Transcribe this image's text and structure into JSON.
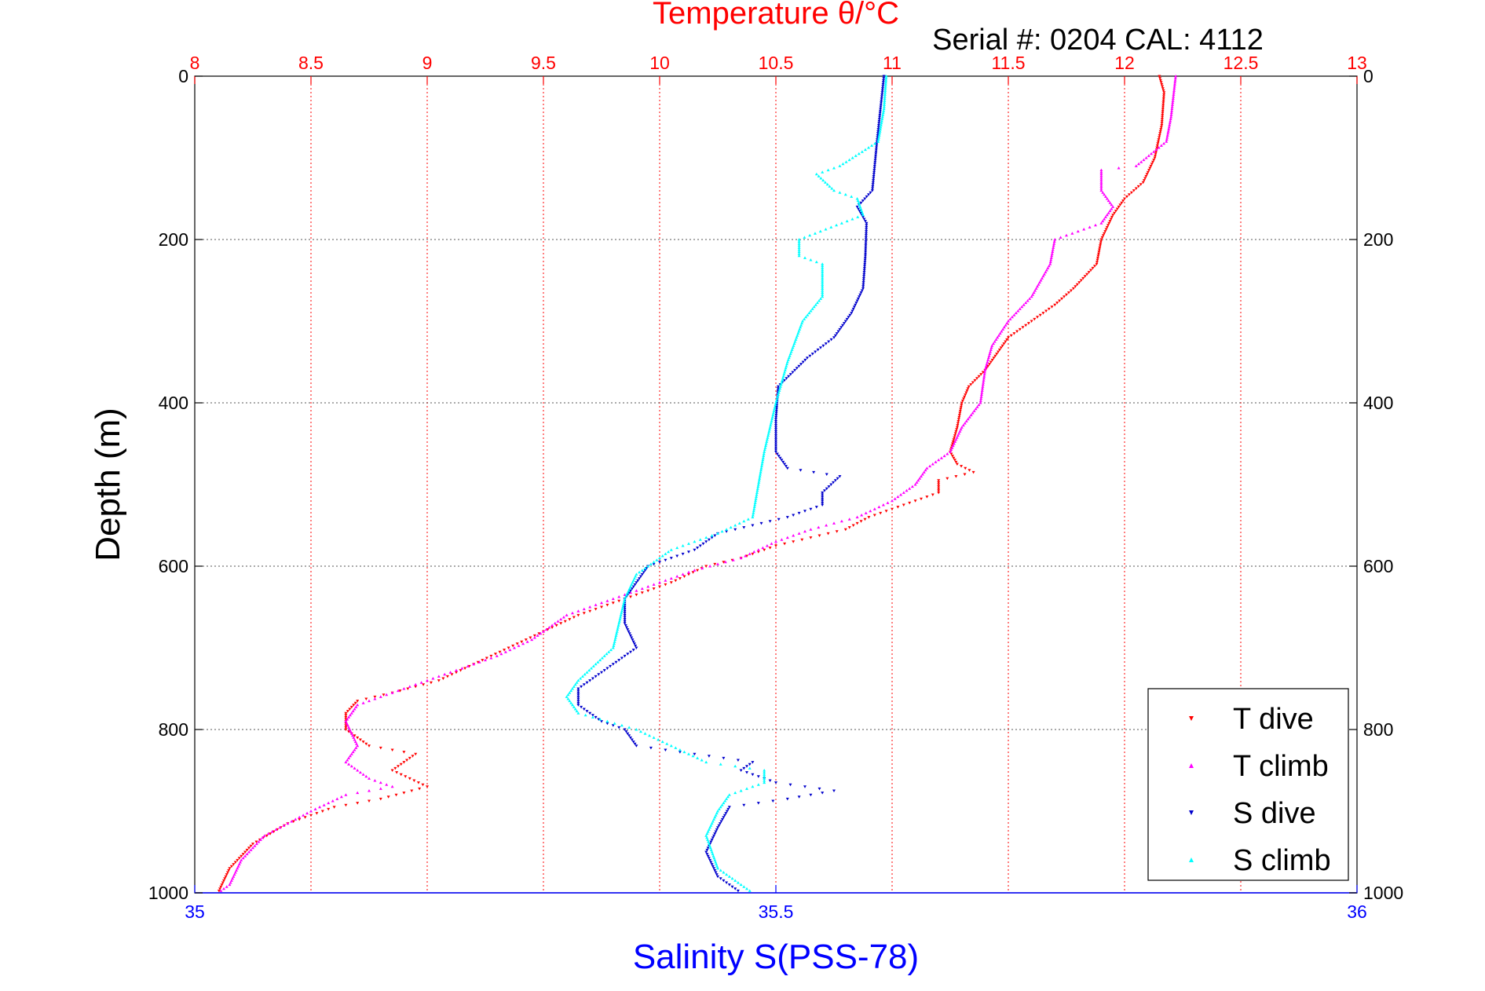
{
  "chart_data": {
    "type": "scatter",
    "title_top": "Temperature θ/°C",
    "subtitle": "Serial #: 0204  CAL: 4112",
    "ylabel": "Depth (m)",
    "xlabel_bottom": "Salinity S(PSS-78)",
    "grid": true,
    "legend_position": "bottom-right",
    "colors": {
      "temperature_axis": "#ff0000",
      "salinity_axis": "#0000ff",
      "t_dive": "#ff0000",
      "t_climb": "#ff00ff",
      "s_dive": "#0000cc",
      "s_climb": "#00ffff"
    },
    "depth_axis": {
      "range": [
        0,
        1000
      ],
      "reversed": true,
      "ticks": [
        0,
        200,
        400,
        600,
        800,
        1000
      ],
      "tick_labels": [
        "0",
        "200",
        "400",
        "600",
        "800",
        "1000"
      ]
    },
    "temperature_axis": {
      "range": [
        8,
        13
      ],
      "ticks": [
        8,
        8.5,
        9,
        9.5,
        10,
        10.5,
        11,
        11.5,
        12,
        12.5,
        13
      ],
      "tick_labels": [
        "8",
        "8.5",
        "9",
        "9.5",
        "10",
        "10.5",
        "11",
        "11.5",
        "12",
        "12.5",
        "13"
      ]
    },
    "salinity_axis": {
      "range": [
        35,
        36
      ],
      "ticks": [
        35,
        35.5,
        36
      ],
      "tick_labels": [
        "35",
        "35.5",
        "36"
      ]
    },
    "legend": [
      "T dive",
      "T climb",
      "S dive",
      "S climb"
    ],
    "series": [
      {
        "name": "T dive",
        "axis": "temperature",
        "points": [
          [
            12.15,
            0
          ],
          [
            12.17,
            20
          ],
          [
            12.16,
            60
          ],
          [
            12.13,
            100
          ],
          [
            12.08,
            130
          ],
          [
            12.0,
            150
          ],
          [
            11.95,
            170
          ],
          [
            11.9,
            200
          ],
          [
            11.88,
            230
          ],
          [
            11.78,
            260
          ],
          [
            11.7,
            280
          ],
          [
            11.6,
            300
          ],
          [
            11.5,
            320
          ],
          [
            11.45,
            340
          ],
          [
            11.4,
            360
          ],
          [
            11.33,
            380
          ],
          [
            11.3,
            400
          ],
          [
            11.28,
            430
          ],
          [
            11.25,
            460
          ],
          [
            11.28,
            475
          ],
          [
            11.35,
            485
          ],
          [
            11.2,
            495
          ],
          [
            11.2,
            510
          ],
          [
            11.1,
            520
          ],
          [
            11.0,
            530
          ],
          [
            10.9,
            540
          ],
          [
            10.8,
            555
          ],
          [
            10.65,
            565
          ],
          [
            10.5,
            575
          ],
          [
            10.35,
            590
          ],
          [
            10.2,
            600
          ],
          [
            10.05,
            620
          ],
          [
            9.85,
            640
          ],
          [
            9.65,
            660
          ],
          [
            9.5,
            680
          ],
          [
            9.35,
            700
          ],
          [
            9.2,
            720
          ],
          [
            9.05,
            740
          ],
          [
            8.85,
            755
          ],
          [
            8.7,
            765
          ],
          [
            8.65,
            780
          ],
          [
            8.65,
            800
          ],
          [
            8.75,
            820
          ],
          [
            8.95,
            830
          ],
          [
            8.85,
            850
          ],
          [
            9.0,
            870
          ],
          [
            8.8,
            885
          ],
          [
            8.6,
            895
          ],
          [
            8.4,
            915
          ],
          [
            8.25,
            940
          ],
          [
            8.15,
            970
          ],
          [
            8.1,
            1000
          ]
        ]
      },
      {
        "name": "T climb",
        "axis": "temperature",
        "points": [
          [
            12.22,
            0
          ],
          [
            12.2,
            50
          ],
          [
            12.18,
            80
          ],
          [
            12.05,
            110
          ],
          [
            11.9,
            115
          ],
          [
            11.9,
            140
          ],
          [
            11.95,
            160
          ],
          [
            11.9,
            180
          ],
          [
            11.7,
            200
          ],
          [
            11.68,
            230
          ],
          [
            11.6,
            270
          ],
          [
            11.5,
            300
          ],
          [
            11.43,
            330
          ],
          [
            11.4,
            360
          ],
          [
            11.38,
            400
          ],
          [
            11.3,
            430
          ],
          [
            11.25,
            460
          ],
          [
            11.15,
            480
          ],
          [
            11.1,
            500
          ],
          [
            11.0,
            520
          ],
          [
            10.85,
            540
          ],
          [
            10.65,
            555
          ],
          [
            10.5,
            570
          ],
          [
            10.35,
            590
          ],
          [
            10.15,
            605
          ],
          [
            10.0,
            620
          ],
          [
            9.8,
            640
          ],
          [
            9.6,
            660
          ],
          [
            9.45,
            690
          ],
          [
            9.3,
            710
          ],
          [
            9.1,
            730
          ],
          [
            8.9,
            750
          ],
          [
            8.7,
            770
          ],
          [
            8.65,
            790
          ],
          [
            8.7,
            820
          ],
          [
            8.65,
            840
          ],
          [
            8.75,
            860
          ],
          [
            8.85,
            870
          ],
          [
            8.65,
            880
          ],
          [
            8.5,
            900
          ],
          [
            8.3,
            930
          ],
          [
            8.2,
            960
          ],
          [
            8.15,
            990
          ],
          [
            8.1,
            1000
          ]
        ]
      },
      {
        "name": "S dive",
        "axis": "salinity",
        "points": [
          [
            35.593,
            0
          ],
          [
            35.59,
            40
          ],
          [
            35.587,
            80
          ],
          [
            35.585,
            110
          ],
          [
            35.583,
            140
          ],
          [
            35.57,
            160
          ],
          [
            35.578,
            180
          ],
          [
            35.577,
            220
          ],
          [
            35.575,
            260
          ],
          [
            35.565,
            290
          ],
          [
            35.55,
            320
          ],
          [
            35.527,
            345
          ],
          [
            35.502,
            380
          ],
          [
            35.5,
            420
          ],
          [
            35.5,
            460
          ],
          [
            35.51,
            480
          ],
          [
            35.555,
            490
          ],
          [
            35.54,
            510
          ],
          [
            35.54,
            525
          ],
          [
            35.51,
            540
          ],
          [
            35.45,
            560
          ],
          [
            35.43,
            580
          ],
          [
            35.39,
            600
          ],
          [
            35.38,
            620
          ],
          [
            35.37,
            640
          ],
          [
            35.37,
            670
          ],
          [
            35.38,
            700
          ],
          [
            35.35,
            730
          ],
          [
            35.33,
            750
          ],
          [
            35.33,
            770
          ],
          [
            35.35,
            790
          ],
          [
            35.37,
            800
          ],
          [
            35.38,
            820
          ],
          [
            35.43,
            830
          ],
          [
            35.48,
            840
          ],
          [
            35.47,
            850
          ],
          [
            35.5,
            865
          ],
          [
            35.55,
            875
          ],
          [
            35.51,
            885
          ],
          [
            35.46,
            895
          ],
          [
            35.45,
            920
          ],
          [
            35.44,
            950
          ],
          [
            35.45,
            980
          ],
          [
            35.47,
            1000
          ]
        ]
      },
      {
        "name": "S climb",
        "axis": "salinity",
        "points": [
          [
            35.595,
            0
          ],
          [
            35.593,
            40
          ],
          [
            35.588,
            80
          ],
          [
            35.555,
            110
          ],
          [
            35.535,
            120
          ],
          [
            35.55,
            140
          ],
          [
            35.57,
            150
          ],
          [
            35.575,
            170
          ],
          [
            35.52,
            200
          ],
          [
            35.52,
            220
          ],
          [
            35.54,
            230
          ],
          [
            35.54,
            270
          ],
          [
            35.523,
            300
          ],
          [
            35.51,
            350
          ],
          [
            35.5,
            400
          ],
          [
            35.49,
            460
          ],
          [
            35.485,
            500
          ],
          [
            35.48,
            540
          ],
          [
            35.45,
            560
          ],
          [
            35.41,
            580
          ],
          [
            35.38,
            610
          ],
          [
            35.37,
            640
          ],
          [
            35.365,
            670
          ],
          [
            35.36,
            700
          ],
          [
            35.33,
            740
          ],
          [
            35.32,
            760
          ],
          [
            35.33,
            780
          ],
          [
            35.38,
            800
          ],
          [
            35.41,
            820
          ],
          [
            35.44,
            840
          ],
          [
            35.49,
            850
          ],
          [
            35.49,
            865
          ],
          [
            35.46,
            880
          ],
          [
            35.45,
            900
          ],
          [
            35.44,
            930
          ],
          [
            35.45,
            970
          ],
          [
            35.48,
            1000
          ]
        ]
      }
    ]
  }
}
